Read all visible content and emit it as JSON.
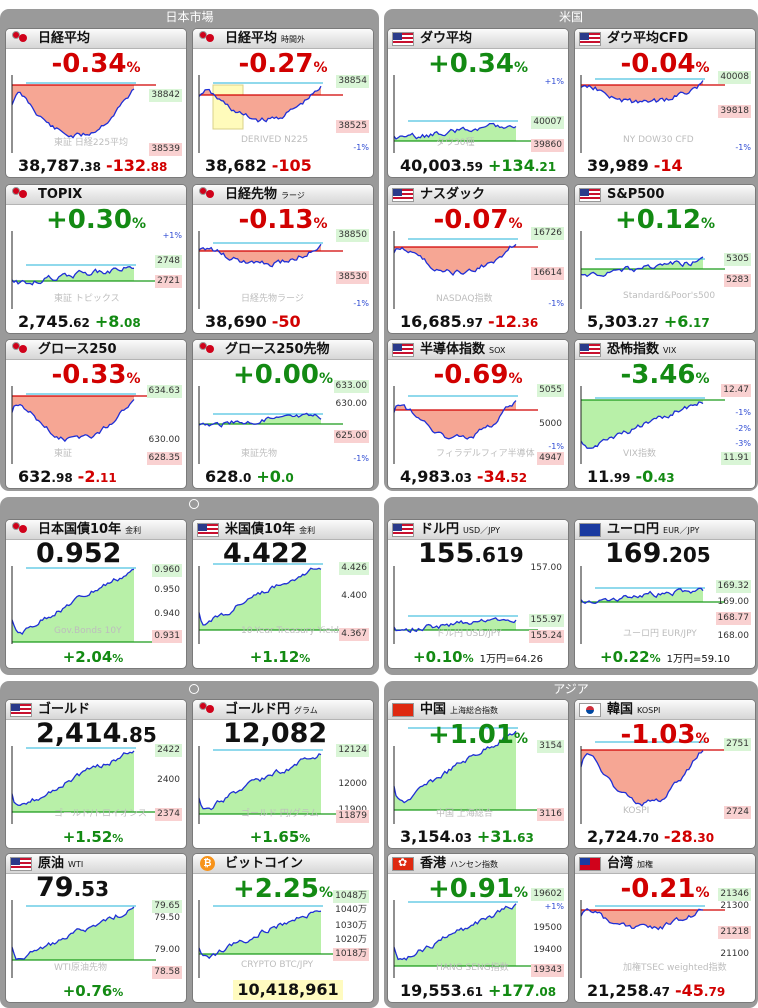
{
  "panels": {
    "japan": "日本市場",
    "us": "米国",
    "asia": "アジア"
  },
  "colors": {
    "up": "#138a13",
    "down": "#d10000",
    "line": "#1f2fd6",
    "fill_down": "#f6a694",
    "fill_up": "#b8f0a8"
  },
  "cards": [
    {
      "id": "nikkei",
      "name": "日経平均",
      "sub": "",
      "flag": "jp",
      "change": "-0.34",
      "unit": "%",
      "dir": "dn",
      "price_main": "38,787",
      "price_dec": ".38",
      "price_chg_main": "-132",
      "price_chg_dec": ".88",
      "watermark": "東証 日経225平均",
      "ticks": [
        {
          "t": "38842",
          "k": "g"
        },
        {
          "t": "38539",
          "k": "r"
        }
      ]
    },
    {
      "id": "nikkei-night",
      "name": "日経平均",
      "sub": "時間外",
      "flag": "jp",
      "change": "-0.27",
      "unit": "%",
      "dir": "dn",
      "price_main": "38,682",
      "price_dec": "",
      "price_chg_main": "-105",
      "price_chg_dec": "",
      "watermark": "DERIVED N225",
      "ticks": [
        {
          "t": "38854",
          "k": "g"
        },
        {
          "t": "38525",
          "k": "r"
        },
        {
          "t": "-1%",
          "k": "b"
        }
      ]
    },
    {
      "id": "dow",
      "name": "ダウ平均",
      "sub": "",
      "flag": "us",
      "change": "+0.34",
      "unit": "%",
      "dir": "up",
      "price_main": "40,003",
      "price_dec": ".59",
      "price_chg_main": "+134",
      "price_chg_dec": ".21",
      "watermark": "ダウ30種",
      "ticks": [
        {
          "t": "+1%",
          "k": "b"
        },
        {
          "t": "40007",
          "k": "g"
        },
        {
          "t": "39860",
          "k": "r"
        }
      ]
    },
    {
      "id": "dow-cfd",
      "name": "ダウ平均CFD",
      "sub": "",
      "flag": "us",
      "change": "-0.04",
      "unit": "%",
      "dir": "dn",
      "price_main": "39,989",
      "price_dec": "",
      "price_chg_main": "-14",
      "price_chg_dec": "",
      "watermark": "NY DOW30 CFD",
      "ticks": [
        {
          "t": "40008",
          "k": "g"
        },
        {
          "t": "39818",
          "k": "r"
        },
        {
          "t": "-1%",
          "k": "b"
        }
      ]
    },
    {
      "id": "topix",
      "name": "TOPIX",
      "sub": "",
      "flag": "jp",
      "change": "+0.30",
      "unit": "%",
      "dir": "up",
      "price_main": "2,745",
      "price_dec": ".62",
      "price_chg_main": "+8",
      "price_chg_dec": ".08",
      "watermark": "東証 トピックス",
      "ticks": [
        {
          "t": "+1%",
          "k": "b"
        },
        {
          "t": "2748",
          "k": "g"
        },
        {
          "t": "2721",
          "k": "r"
        }
      ]
    },
    {
      "id": "nikkei-fut",
      "name": "日経先物",
      "sub": "ラージ",
      "flag": "jp",
      "change": "-0.13",
      "unit": "%",
      "dir": "dn",
      "price_main": "38,690",
      "price_dec": "",
      "price_chg_main": "-50",
      "price_chg_dec": "",
      "watermark": "日経先物ラージ",
      "ticks": [
        {
          "t": "38850",
          "k": "g"
        },
        {
          "t": "38530",
          "k": "r"
        },
        {
          "t": "-1%",
          "k": "b"
        }
      ]
    },
    {
      "id": "nasdaq",
      "name": "ナスダック",
      "sub": "",
      "flag": "us",
      "change": "-0.07",
      "unit": "%",
      "dir": "dn",
      "price_main": "16,685",
      "price_dec": ".97",
      "price_chg_main": "-12",
      "price_chg_dec": ".36",
      "watermark": "NASDAQ指数",
      "ticks": [
        {
          "t": "16726",
          "k": "g"
        },
        {
          "t": "16614",
          "k": "r"
        },
        {
          "t": "-1%",
          "k": "b"
        }
      ]
    },
    {
      "id": "sp500",
      "name": "S&P500",
      "sub": "",
      "flag": "us",
      "change": "+0.12",
      "unit": "%",
      "dir": "up",
      "price_main": "5,303",
      "price_dec": ".27",
      "price_chg_main": "+6",
      "price_chg_dec": ".17",
      "watermark": "Standard&Poor's500",
      "ticks": [
        {
          "t": "5305",
          "k": "g"
        },
        {
          "t": "5283",
          "k": "r"
        }
      ]
    },
    {
      "id": "growth250",
      "name": "グロース250",
      "sub": "",
      "flag": "jp",
      "change": "-0.33",
      "unit": "%",
      "dir": "dn",
      "price_main": "632",
      "price_dec": ".98",
      "price_chg_main": "-2",
      "price_chg_dec": ".11",
      "watermark": "東証",
      "ticks": [
        {
          "t": "634.63",
          "k": "g"
        },
        {
          "t": "630.00",
          "k": "n"
        },
        {
          "t": "628.35",
          "k": "r"
        }
      ]
    },
    {
      "id": "growth250-fut",
      "name": "グロース250先物",
      "sub": "",
      "flag": "jp",
      "change": "+0.00",
      "unit": "%",
      "dir": "up",
      "price_main": "628",
      "price_dec": ".0",
      "price_chg_main": "+0",
      "price_chg_dec": ".0",
      "watermark": "東証先物",
      "ticks": [
        {
          "t": "633.00",
          "k": "g"
        },
        {
          "t": "630.00",
          "k": "n"
        },
        {
          "t": "625.00",
          "k": "r"
        },
        {
          "t": "-1%",
          "k": "b"
        }
      ]
    },
    {
      "id": "sox",
      "name": "半導体指数",
      "sub": "SOX",
      "flag": "us",
      "change": "-0.69",
      "unit": "%",
      "dir": "dn",
      "price_main": "4,983",
      "price_dec": ".03",
      "price_chg_main": "-34",
      "price_chg_dec": ".52",
      "watermark": "フィラデルフィア半導体",
      "ticks": [
        {
          "t": "5055",
          "k": "g"
        },
        {
          "t": "5000",
          "k": "n"
        },
        {
          "t": "-1%",
          "k": "b"
        },
        {
          "t": "4947",
          "k": "r"
        }
      ]
    },
    {
      "id": "vix",
      "name": "恐怖指数",
      "sub": "VIX",
      "flag": "us",
      "change": "-3.46",
      "unit": "%",
      "dir": "up",
      "price_main": "11",
      "price_dec": ".99",
      "price_chg_main": "-0",
      "price_chg_dec": ".43",
      "watermark": "VIX指数",
      "ticks": [
        {
          "t": "12.47",
          "k": "r"
        },
        {
          "t": "-1%",
          "k": "b"
        },
        {
          "t": "-2%",
          "k": "b"
        },
        {
          "t": "-3%",
          "k": "b"
        },
        {
          "t": "11.91",
          "k": "g"
        }
      ]
    },
    {
      "id": "jgb10",
      "name": "日本国債10年",
      "sub": "金利",
      "flag": "jp",
      "big_main": "0.952",
      "big_dec": "",
      "bottom": "+2.04",
      "unit": "%",
      "dir": "up",
      "note": "",
      "watermark": "Gov.Bonds 10Y",
      "ticks": [
        {
          "t": "0.960",
          "k": "g"
        },
        {
          "t": "0.950",
          "k": "n"
        },
        {
          "t": "0.940",
          "k": "n"
        },
        {
          "t": "0.931",
          "k": "r"
        }
      ]
    },
    {
      "id": "ust10",
      "name": "米国債10年",
      "sub": "金利",
      "flag": "us",
      "big_main": "4.422",
      "big_dec": "",
      "bottom": "+1.12",
      "unit": "%",
      "dir": "up",
      "note": "",
      "watermark": "10-Year Treasury Yield",
      "ticks": [
        {
          "t": "4.426",
          "k": "g"
        },
        {
          "t": "4.400",
          "k": "n"
        },
        {
          "t": "4.367",
          "k": "r"
        }
      ]
    },
    {
      "id": "usdjpy",
      "name": "ドル円",
      "sub": "USD／JPY",
      "flag": "us",
      "big_main": "155",
      "big_dec": ".619",
      "bottom": "+0.10",
      "unit": "%",
      "dir": "up",
      "note": "1万円=64.26",
      "watermark": "ドル円 USD/JPY",
      "ticks": [
        {
          "t": "157.00",
          "k": "n"
        },
        {
          "t": "155.97",
          "k": "g"
        },
        {
          "t": "155.24",
          "k": "r"
        }
      ]
    },
    {
      "id": "eurjpy",
      "name": "ユーロ円",
      "sub": "EUR／JPY",
      "flag": "eu",
      "big_main": "169",
      "big_dec": ".205",
      "bottom": "+0.22",
      "unit": "%",
      "dir": "up",
      "note": "1万円=59.10",
      "watermark": "ユーロ円 EUR/JPY",
      "ticks": [
        {
          "t": "169.32",
          "k": "g"
        },
        {
          "t": "169.00",
          "k": "n"
        },
        {
          "t": "168.77",
          "k": "r"
        },
        {
          "t": "168.00",
          "k": "n"
        }
      ]
    },
    {
      "id": "gold",
      "name": "ゴールド",
      "sub": "",
      "flag": "us",
      "big_main": "2,414",
      "big_dec": ".85",
      "bottom": "+1.52",
      "unit": "%",
      "dir": "up",
      "note": "",
      "watermark": "ゴールド/トロイオンス",
      "ticks": [
        {
          "t": "2422",
          "k": "g"
        },
        {
          "t": "2400",
          "k": "n"
        },
        {
          "t": "2374",
          "k": "r"
        }
      ]
    },
    {
      "id": "gold-jpy",
      "name": "ゴールド円",
      "sub": "グラム",
      "flag": "jp",
      "big_main": "12,082",
      "big_dec": "",
      "bottom": "+1.65",
      "unit": "%",
      "dir": "up",
      "note": "",
      "watermark": "ゴールド 円/グラム",
      "ticks": [
        {
          "t": "12124",
          "k": "g"
        },
        {
          "t": "12000",
          "k": "n"
        },
        {
          "t": "11900",
          "k": "n"
        },
        {
          "t": "11879",
          "k": "r"
        }
      ]
    },
    {
      "id": "shanghai",
      "name": "中国",
      "sub": "上海総合指数",
      "flag": "cn",
      "change": "+1.01",
      "unit": "%",
      "dir": "up",
      "price_main": "3,154",
      "price_dec": ".03",
      "price_chg_main": "+31",
      "price_chg_dec": ".63",
      "watermark": "中国 上海総合",
      "ticks": [
        {
          "t": "3154",
          "k": "g"
        },
        {
          "t": "3116",
          "k": "r"
        }
      ]
    },
    {
      "id": "kospi",
      "name": "韓国",
      "sub": "KOSPI",
      "flag": "kr",
      "change": "-1.03",
      "unit": "%",
      "dir": "dn",
      "price_main": "2,724",
      "price_dec": ".70",
      "price_chg_main": "-28",
      "price_chg_dec": ".30",
      "watermark": "KOSPI",
      "ticks": [
        {
          "t": "2751",
          "k": "g"
        },
        {
          "t": "2724",
          "k": "r"
        }
      ]
    },
    {
      "id": "crude",
      "name": "原油",
      "sub": "WTI",
      "flag": "us",
      "big_main": "79",
      "big_dec": ".53",
      "bottom": "+0.76",
      "unit": "%",
      "dir": "up",
      "note": "",
      "watermark": "WTI原油先物",
      "ticks": [
        {
          "t": "79.65",
          "k": "g"
        },
        {
          "t": "79.50",
          "k": "n"
        },
        {
          "t": "79.00",
          "k": "n"
        },
        {
          "t": "78.58",
          "k": "r"
        }
      ]
    },
    {
      "id": "bitcoin",
      "name": "ビットコイン",
      "sub": "",
      "flag": "btc",
      "change": "+2.25",
      "unit": "%",
      "dir": "up",
      "btc_price": "10,418,961",
      "watermark": "CRYPTO BTC/JPY",
      "ticks": [
        {
          "t": "1048万",
          "k": "g"
        },
        {
          "t": "1040万",
          "k": "n"
        },
        {
          "t": "1030万",
          "k": "n"
        },
        {
          "t": "1020万",
          "k": "n"
        },
        {
          "t": "1018万",
          "k": "r"
        }
      ]
    },
    {
      "id": "hangseng",
      "name": "香港",
      "sub": "ハンセン指数",
      "flag": "hk",
      "change": "+0.91",
      "unit": "%",
      "dir": "up",
      "price_main": "19,553",
      "price_dec": ".61",
      "price_chg_main": "+177",
      "price_chg_dec": ".08",
      "watermark": "HANG SENG指数",
      "ticks": [
        {
          "t": "19602",
          "k": "g"
        },
        {
          "t": "+1%",
          "k": "b"
        },
        {
          "t": "19500",
          "k": "n"
        },
        {
          "t": "19400",
          "k": "n"
        },
        {
          "t": "19343",
          "k": "r"
        }
      ]
    },
    {
      "id": "taiwan",
      "name": "台湾",
      "sub": "加権",
      "flag": "tw",
      "change": "-0.21",
      "unit": "%",
      "dir": "dn",
      "price_main": "21,258",
      "price_dec": ".47",
      "price_chg_main": "-45",
      "price_chg_dec": ".79",
      "watermark": "加権TSEC weighted指数",
      "ticks": [
        {
          "t": "21346",
          "k": "g"
        },
        {
          "t": "21300",
          "k": "n"
        },
        {
          "t": "21218",
          "k": "r"
        },
        {
          "t": "21100",
          "k": "n"
        }
      ]
    }
  ]
}
